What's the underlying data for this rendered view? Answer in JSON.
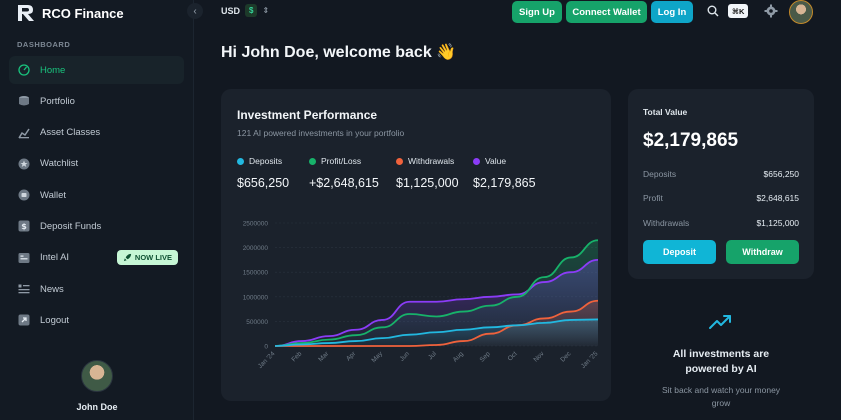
{
  "app": {
    "name": "RCO Finance"
  },
  "colors": {
    "accent_green": "#16a36a",
    "accent_cyan": "#0ea5c8",
    "deposits": "#22b8e0",
    "profit": "#17b26a",
    "withdrawals": "#f0623c",
    "value": "#8b3cf7"
  },
  "sidebar": {
    "section_label": "DASHBOARD",
    "items": [
      {
        "label": "Home",
        "icon": "home-icon",
        "active": true
      },
      {
        "label": "Portfolio",
        "icon": "portfolio-icon"
      },
      {
        "label": "Asset Classes",
        "icon": "chart-icon"
      },
      {
        "label": "Watchlist",
        "icon": "star-icon"
      },
      {
        "label": "Wallet",
        "icon": "wallet-icon"
      },
      {
        "label": "Deposit Funds",
        "icon": "dollar-icon"
      },
      {
        "label": "Intel AI",
        "icon": "ai-icon",
        "badge": "NOW LIVE"
      },
      {
        "label": "News",
        "icon": "news-icon"
      },
      {
        "label": "Logout",
        "icon": "logout-icon"
      }
    ],
    "user_name": "John Doe"
  },
  "topbar": {
    "currency": "USD",
    "currency_symbol": "$",
    "signup_label": "Sign Up",
    "connect_wallet_label": "Connect Wallet",
    "login_label": "Log In",
    "shortcut": "⌘K"
  },
  "welcome": "Hi John Doe, welcome back 👋",
  "performance": {
    "title": "Investment Performance",
    "subtitle": "121 AI powered investments in your portfolio",
    "legend": [
      {
        "name": "Deposits",
        "value": "$656,250",
        "color": "#22b8e0"
      },
      {
        "name": "Profit/Loss",
        "value": "+$2,648,615",
        "color": "#17b26a"
      },
      {
        "name": "Withdrawals",
        "value": "$1,125,000",
        "color": "#f0623c"
      },
      {
        "name": "Value",
        "value": "$2,179,865",
        "color": "#8b3cf7"
      }
    ]
  },
  "chart_data": {
    "type": "line",
    "categories": [
      "Jan '24",
      "Feb",
      "Mar",
      "Apr",
      "May",
      "Jun",
      "Jul",
      "Aug",
      "Sep",
      "Oct",
      "Nov",
      "Dec",
      "Jan '25"
    ],
    "y_ticks": [
      "0",
      "500000",
      "1000000",
      "1500000",
      "2000000",
      "2500000"
    ],
    "ylim": [
      0,
      2500000
    ],
    "grid": true,
    "series": [
      {
        "name": "Deposits",
        "color": "#22b8e0",
        "values": [
          0,
          30000,
          60000,
          100000,
          160000,
          230000,
          280000,
          330000,
          380000,
          420000,
          470000,
          530000,
          540000
        ]
      },
      {
        "name": "Profit/Loss",
        "color": "#17b26a",
        "values": [
          0,
          60000,
          130000,
          220000,
          380000,
          650000,
          600000,
          700000,
          820000,
          1000000,
          1400000,
          1800000,
          2150000
        ]
      },
      {
        "name": "Withdrawals",
        "color": "#f0623c",
        "values": [
          0,
          0,
          0,
          0,
          0,
          0,
          20000,
          100000,
          250000,
          420000,
          560000,
          700000,
          920000
        ]
      },
      {
        "name": "Value",
        "color": "#8b3cf7",
        "values": [
          0,
          100000,
          200000,
          330000,
          530000,
          900000,
          900000,
          950000,
          1000000,
          1050000,
          1300000,
          1500000,
          1750000
        ]
      }
    ]
  },
  "total": {
    "label": "Total Value",
    "value": "$2,179,865",
    "rows": [
      {
        "label": "Deposits",
        "value": "$656,250"
      },
      {
        "label": "Profit",
        "value": "$2,648,615"
      },
      {
        "label": "Withdrawals",
        "value": "$1,125,000"
      }
    ],
    "deposit_label": "Deposit",
    "withdraw_label": "Withdraw"
  },
  "ai_promo": {
    "title_line1": "All investments are",
    "title_line2": "powered by AI",
    "sub_line1": "Sit back and watch your money",
    "sub_line2": "grow"
  }
}
